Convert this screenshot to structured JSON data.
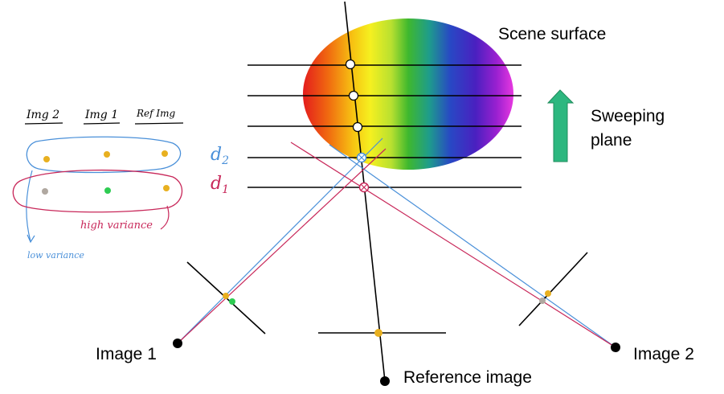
{
  "labels": {
    "scene_surface": "Scene surface",
    "sweeping_plane_line1": "Sweeping",
    "sweeping_plane_line2": "plane",
    "image1": "Image 1",
    "image2": "Image 2",
    "reference_image": "Reference image",
    "d2": "d",
    "d2_sub": "2",
    "d1": "d",
    "d1_sub": "1"
  },
  "sketch": {
    "col_img2": "Img 2",
    "col_img1": "Img 1",
    "col_ref": "Ref Img",
    "low_variance": "low variance",
    "high_variance": "high variance"
  },
  "colors": {
    "blue_ray": "#4a90d9",
    "red_ray": "#c8285a",
    "arrow_green": "#2db77f",
    "gold_point": "#e8b020",
    "green_point": "#2ecc52",
    "gray_point": "#b0a8a0",
    "low_var_text": "#4a90d9",
    "high_var_text": "#c8285a"
  },
  "spectrum": [
    "#e82020",
    "#f06a10",
    "#f5c010",
    "#f7f020",
    "#c8e83a",
    "#40c030",
    "#20b090",
    "#2850c8",
    "#5020c0",
    "#a020d0",
    "#e030e0"
  ]
}
